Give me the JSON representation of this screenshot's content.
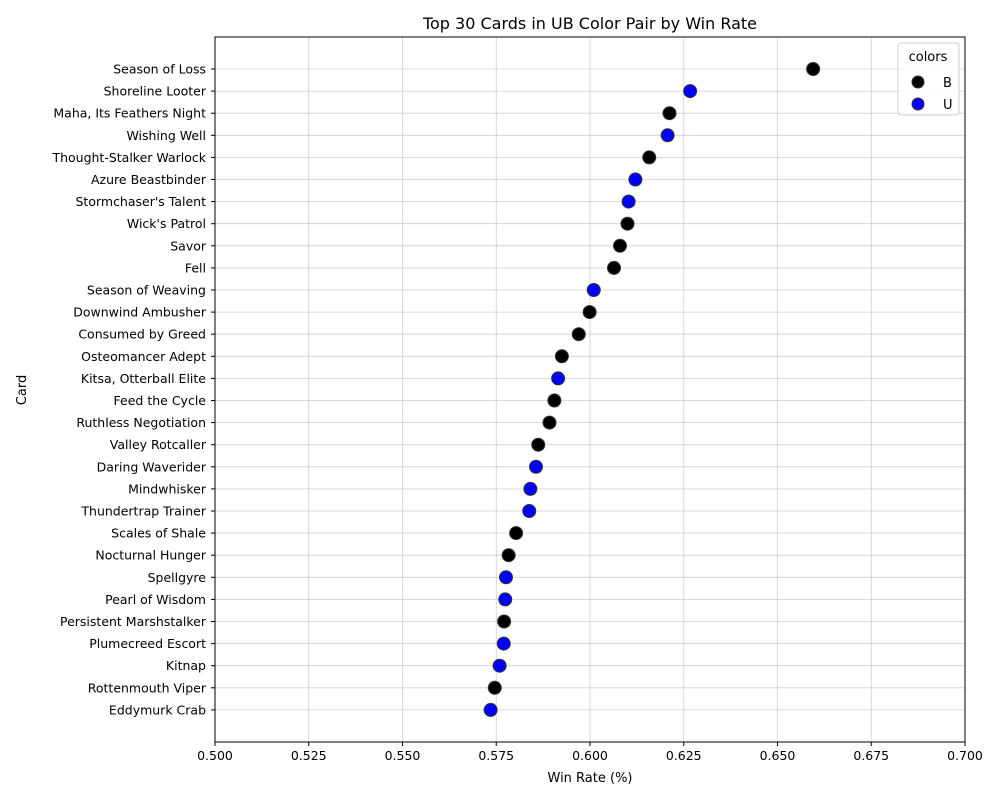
{
  "chart_data": {
    "type": "scatter",
    "title": "Top 30 Cards in UB Color Pair by Win Rate",
    "xlabel": "Win Rate (%)",
    "ylabel": "Card",
    "xlim": [
      0.5,
      0.7
    ],
    "xticks": [
      "0.500",
      "0.525",
      "0.550",
      "0.575",
      "0.600",
      "0.625",
      "0.650",
      "0.675",
      "0.700"
    ],
    "grid": true,
    "legend": {
      "title": "colors",
      "placement": "top-right",
      "entries": [
        {
          "label": "B",
          "color": "#000000"
        },
        {
          "label": "U",
          "color": "#0000ff"
        }
      ]
    },
    "points": [
      {
        "card": "Season of Loss",
        "win_rate": 0.6595,
        "color": "B"
      },
      {
        "card": "Shoreline Looter",
        "win_rate": 0.6267,
        "color": "U"
      },
      {
        "card": "Maha, Its Feathers Night",
        "win_rate": 0.6212,
        "color": "B"
      },
      {
        "card": "Wishing Well",
        "win_rate": 0.6207,
        "color": "U"
      },
      {
        "card": "Thought-Stalker Warlock",
        "win_rate": 0.6158,
        "color": "B"
      },
      {
        "card": "Azure Beastbinder",
        "win_rate": 0.6121,
        "color": "U"
      },
      {
        "card": "Stormchaser's Talent",
        "win_rate": 0.6103,
        "color": "U"
      },
      {
        "card": "Wick's Patrol",
        "win_rate": 0.61,
        "color": "B"
      },
      {
        "card": "Savor",
        "win_rate": 0.608,
        "color": "B"
      },
      {
        "card": "Fell",
        "win_rate": 0.6064,
        "color": "B"
      },
      {
        "card": "Season of Weaving",
        "win_rate": 0.601,
        "color": "U"
      },
      {
        "card": "Downwind Ambusher",
        "win_rate": 0.5999,
        "color": "B"
      },
      {
        "card": "Consumed by Greed",
        "win_rate": 0.597,
        "color": "B"
      },
      {
        "card": "Osteomancer Adept",
        "win_rate": 0.5925,
        "color": "B"
      },
      {
        "card": "Kitsa, Otterball Elite",
        "win_rate": 0.5915,
        "color": "U"
      },
      {
        "card": "Feed the Cycle",
        "win_rate": 0.5905,
        "color": "B"
      },
      {
        "card": "Ruthless Negotiation",
        "win_rate": 0.5892,
        "color": "B"
      },
      {
        "card": "Valley Rotcaller",
        "win_rate": 0.5862,
        "color": "B"
      },
      {
        "card": "Daring Waverider",
        "win_rate": 0.5856,
        "color": "U"
      },
      {
        "card": "Mindwhisker",
        "win_rate": 0.5841,
        "color": "U"
      },
      {
        "card": "Thundertrap Trainer",
        "win_rate": 0.5838,
        "color": "U"
      },
      {
        "card": "Scales of Shale",
        "win_rate": 0.5803,
        "color": "B"
      },
      {
        "card": "Nocturnal Hunger",
        "win_rate": 0.5783,
        "color": "B"
      },
      {
        "card": "Spellgyre",
        "win_rate": 0.5776,
        "color": "U"
      },
      {
        "card": "Pearl of Wisdom",
        "win_rate": 0.5774,
        "color": "U"
      },
      {
        "card": "Persistent Marshstalker",
        "win_rate": 0.5771,
        "color": "B"
      },
      {
        "card": "Plumecreed Escort",
        "win_rate": 0.577,
        "color": "U"
      },
      {
        "card": "Kitnap",
        "win_rate": 0.5759,
        "color": "U"
      },
      {
        "card": "Rottenmouth Viper",
        "win_rate": 0.5746,
        "color": "B"
      },
      {
        "card": "Eddymurk Crab",
        "win_rate": 0.5735,
        "color": "U"
      }
    ]
  }
}
